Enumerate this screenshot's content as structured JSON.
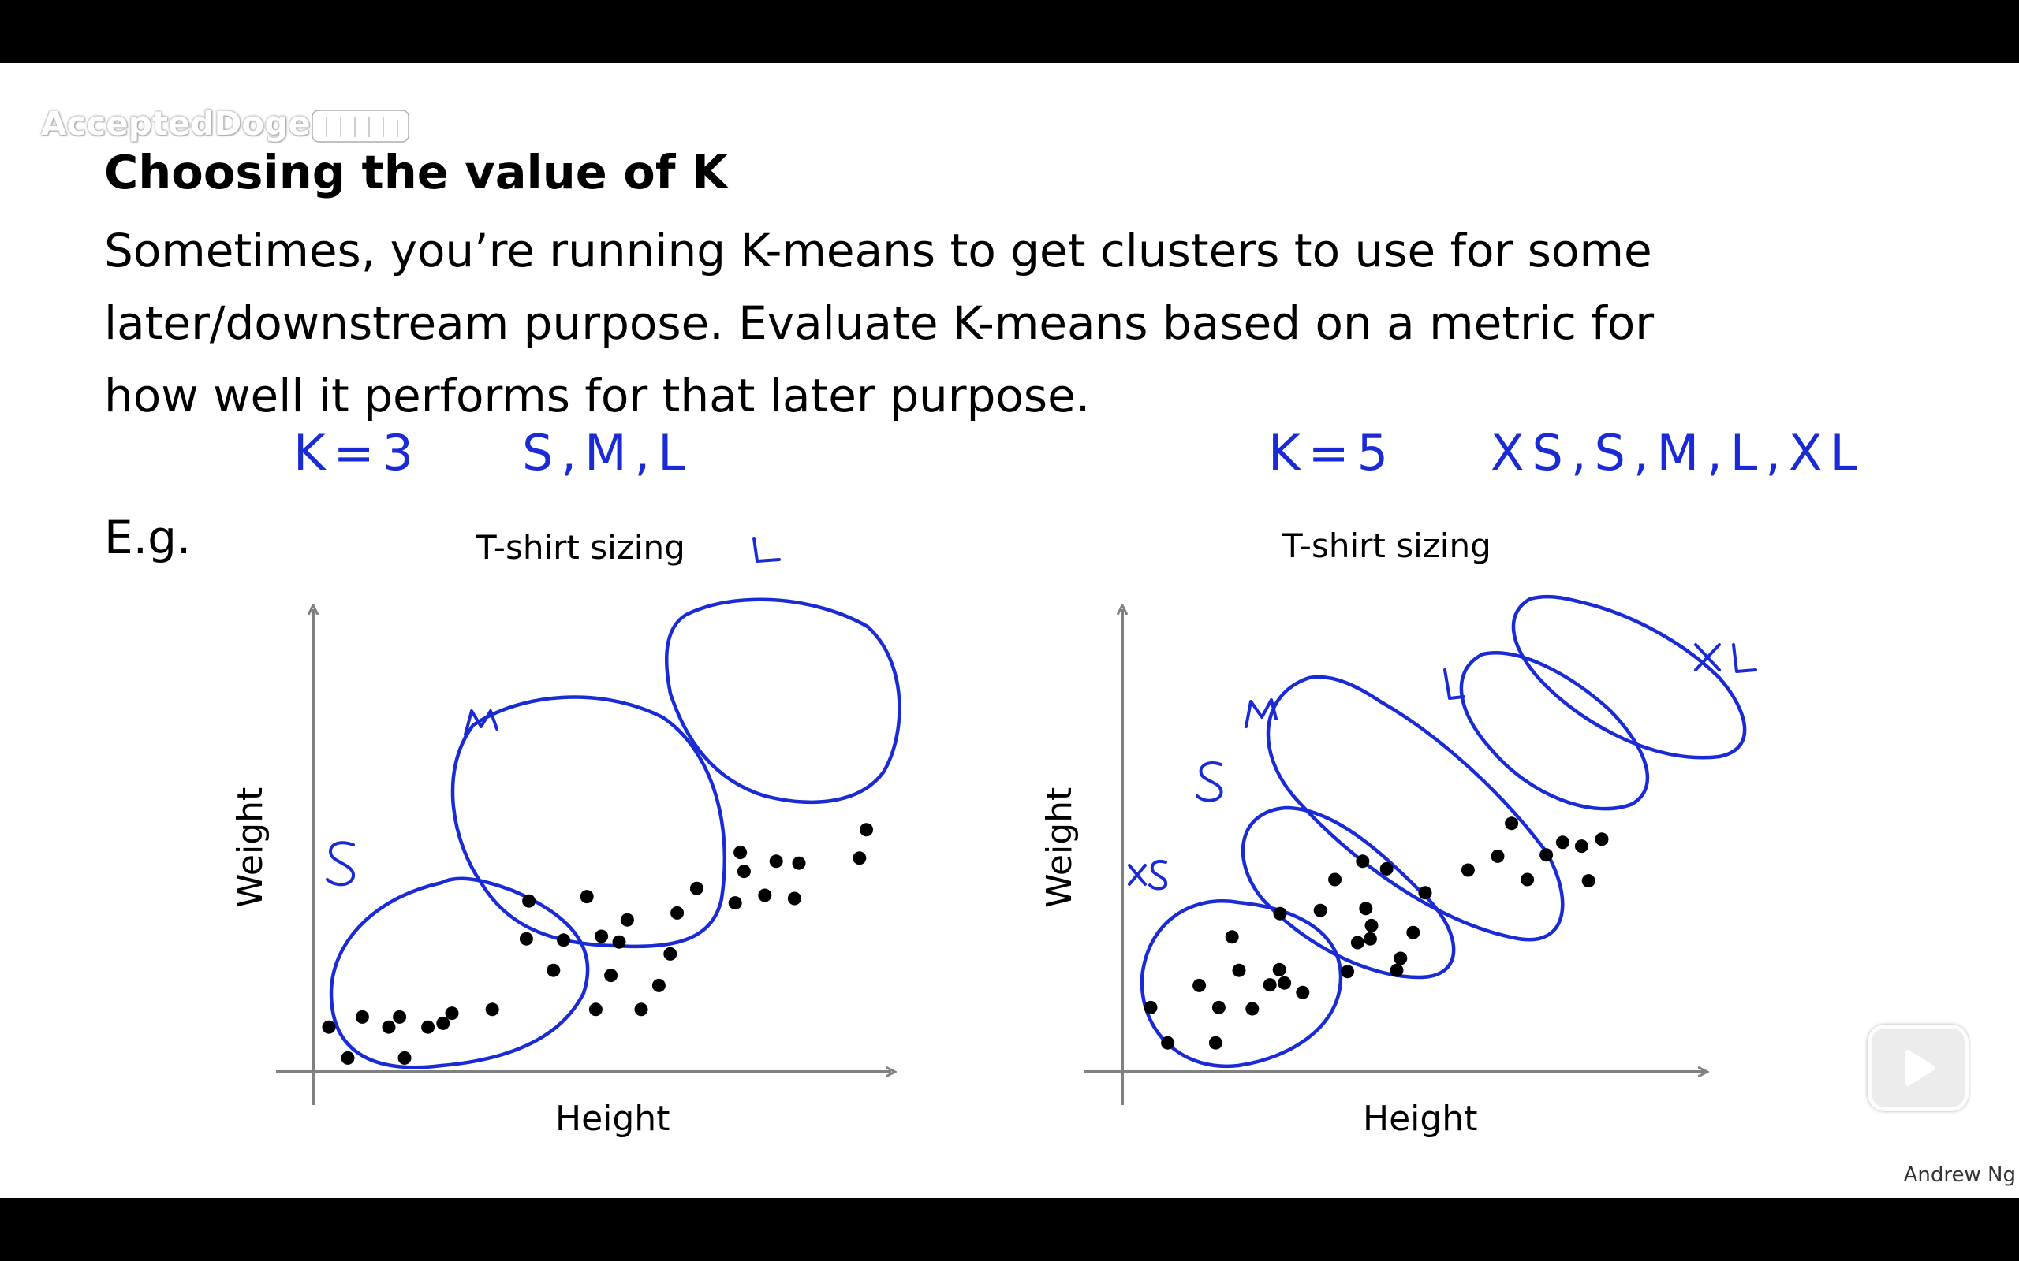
{
  "watermark": {
    "text": "AcceptedDoge",
    "logo_text": "bilibili"
  },
  "slide": {
    "title": "Choosing the value of K",
    "body_lines": [
      "Sometimes, you’re running K-means to get clusters to use for some",
      "later/downstream purpose. Evaluate K-means based on a metric for",
      "how well it performs for that later purpose."
    ],
    "eg_label": "E.g.",
    "credit": "Andrew Ng"
  },
  "annotations": {
    "left_k": "K=3",
    "left_sizes": "S,M,L",
    "right_k": "K=5",
    "right_sizes": "XS,S,M,L,XL",
    "left_clusters": [
      "S",
      "M",
      "L"
    ],
    "right_clusters": [
      "XS",
      "S",
      "M",
      "L",
      "XL"
    ]
  },
  "colors": {
    "ink": "#1a2bd6",
    "axis": "#808080",
    "point": "#000000"
  },
  "play_button": {
    "icon": "play-icon"
  },
  "chart_data": [
    {
      "type": "scatter",
      "title": "T-shirt sizing",
      "xlabel": "Height",
      "ylabel": "Weight",
      "grid": false,
      "points": [
        [
          0.55,
          0.22
        ],
        [
          1.45,
          0.22
        ],
        [
          0.25,
          0.71
        ],
        [
          1.2,
          0.71
        ],
        [
          1.82,
          0.71
        ],
        [
          1.37,
          0.87
        ],
        [
          0.78,
          0.87
        ],
        [
          2.2,
          0.93
        ],
        [
          2.06,
          0.77
        ],
        [
          2.84,
          0.99
        ],
        [
          4.48,
          0.99
        ],
        [
          5.2,
          0.99
        ],
        [
          5.48,
          1.37
        ],
        [
          4.72,
          1.53
        ],
        [
          3.81,
          1.61
        ],
        [
          5.66,
          1.87
        ],
        [
          4.85,
          2.06
        ],
        [
          3.38,
          2.11
        ],
        [
          3.97,
          2.09
        ],
        [
          4.57,
          2.15
        ],
        [
          5.77,
          2.52
        ],
        [
          4.98,
          2.41
        ],
        [
          3.42,
          2.71
        ],
        [
          4.34,
          2.78
        ],
        [
          6.08,
          2.91
        ],
        [
          6.69,
          2.68
        ],
        [
          7.16,
          2.8
        ],
        [
          7.63,
          2.75
        ],
        [
          6.83,
          3.18
        ],
        [
          7.7,
          3.31
        ],
        [
          7.34,
          3.34
        ],
        [
          6.77,
          3.48
        ],
        [
          8.66,
          3.39
        ],
        [
          8.77,
          3.84
        ]
      ]
    },
    {
      "type": "scatter",
      "title": "T-shirt sizing",
      "xlabel": "Height",
      "ylabel": "Weight",
      "grid": false,
      "points": [
        [
          0.72,
          0.46
        ],
        [
          1.48,
          0.46
        ],
        [
          0.45,
          1.02
        ],
        [
          1.53,
          1.02
        ],
        [
          2.06,
          1.0
        ],
        [
          1.22,
          1.37
        ],
        [
          2.57,
          1.41
        ],
        [
          2.86,
          1.26
        ],
        [
          2.34,
          1.38
        ],
        [
          1.85,
          1.61
        ],
        [
          2.49,
          1.62
        ],
        [
          3.57,
          1.59
        ],
        [
          4.35,
          1.61
        ],
        [
          1.74,
          2.14
        ],
        [
          3.93,
          2.11
        ],
        [
          4.41,
          1.8
        ],
        [
          3.73,
          2.05
        ],
        [
          3.95,
          2.32
        ],
        [
          4.61,
          2.21
        ],
        [
          2.5,
          2.51
        ],
        [
          3.14,
          2.56
        ],
        [
          3.86,
          2.59
        ],
        [
          4.8,
          2.84
        ],
        [
          3.37,
          3.05
        ],
        [
          4.19,
          3.22
        ],
        [
          3.81,
          3.34
        ],
        [
          5.48,
          3.2
        ],
        [
          6.42,
          3.05
        ],
        [
          7.39,
          3.03
        ],
        [
          5.95,
          3.42
        ],
        [
          6.72,
          3.44
        ],
        [
          7.28,
          3.58
        ],
        [
          6.98,
          3.64
        ],
        [
          7.6,
          3.69
        ],
        [
          6.17,
          3.94
        ]
      ]
    }
  ]
}
